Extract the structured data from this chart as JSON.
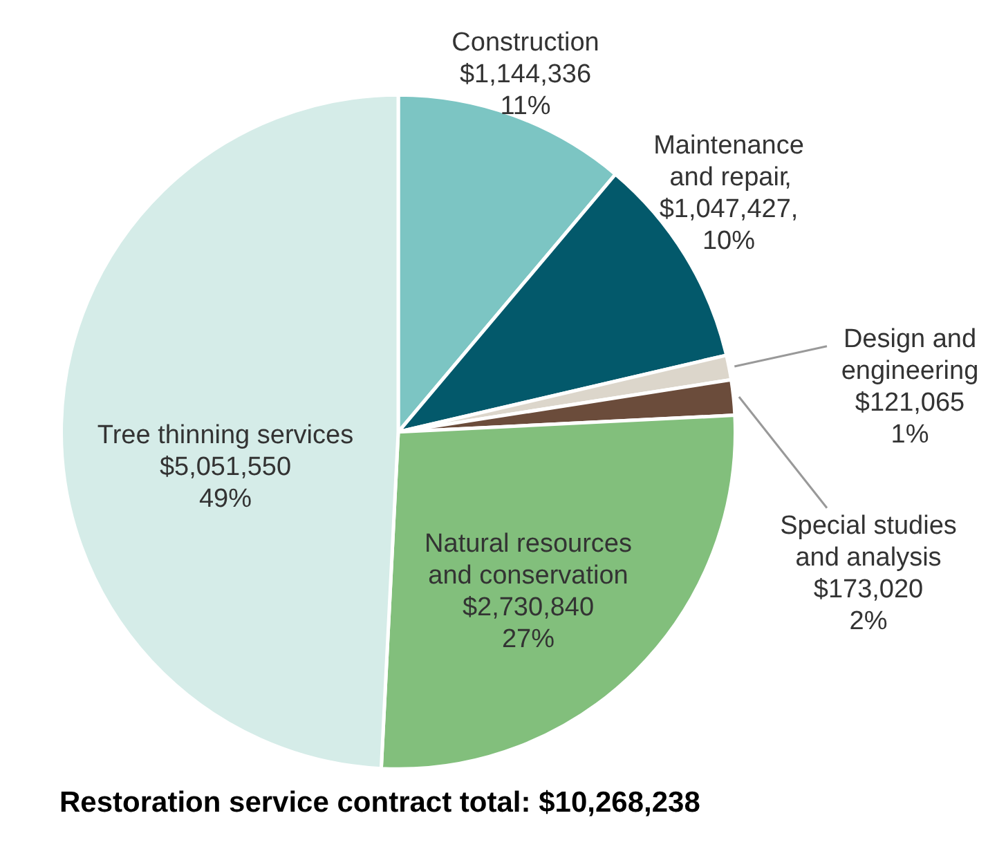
{
  "chart_data": {
    "type": "pie",
    "title": "Restoration service contract total: $10,268,238",
    "categories": [
      "Construction",
      "Maintenance and repair",
      "Design and engineering",
      "Special studies and analysis",
      "Natural resources and conservation",
      "Tree thinning services"
    ],
    "values": [
      1144336,
      1047427,
      121065,
      173020,
      2730840,
      5051550
    ],
    "value_labels": [
      "$1,144,336\n11%",
      "$1,047,427,\n10%",
      "$121,065\n1%",
      "$173,020\n2%",
      "$2,730,840\n27%",
      "$5,051,550\n49%"
    ],
    "colors": [
      "#7cc5c3",
      "#03596b",
      "#dcd6cb",
      "#6b4c3b",
      "#82bf7c",
      "#d5ece8"
    ],
    "annotations": [
      ","
    ],
    "legend": false
  }
}
